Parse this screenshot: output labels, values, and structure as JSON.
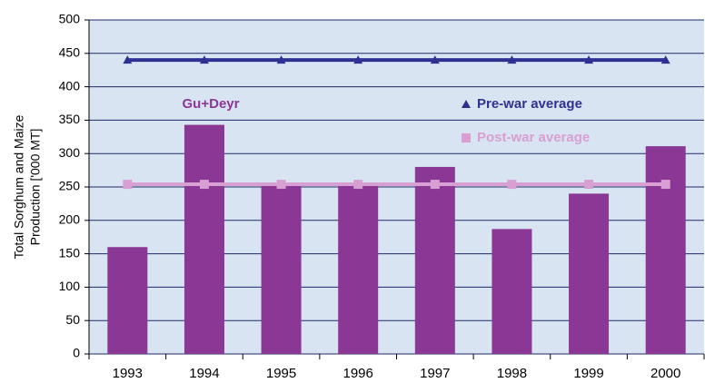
{
  "chart_data": {
    "type": "bar",
    "ylabel": [
      "Total Sorghum and Maize",
      "Production ['000 MT]"
    ],
    "categories": [
      "1993",
      "1994",
      "1995",
      "1996",
      "1997",
      "1998",
      "1999",
      "2000"
    ],
    "series": [
      {
        "name": "Gu+Deyr",
        "type": "bar",
        "color": "#8b3795",
        "values": [
          160,
          343,
          255,
          255,
          280,
          187,
          240,
          311
        ]
      },
      {
        "name": "Pre-war average",
        "type": "line",
        "marker": "triangle",
        "color": "#2e3192",
        "values": [
          440,
          440,
          440,
          440,
          440,
          440,
          440,
          440
        ]
      },
      {
        "name": "Post-war average",
        "type": "line",
        "marker": "square",
        "color": "#d79fd2",
        "values": [
          254,
          254,
          254,
          254,
          254,
          254,
          254,
          254
        ]
      }
    ],
    "ylim": [
      0,
      500
    ],
    "yticks": [
      0,
      50,
      100,
      150,
      200,
      250,
      300,
      350,
      400,
      450,
      500
    ],
    "grid": true
  }
}
